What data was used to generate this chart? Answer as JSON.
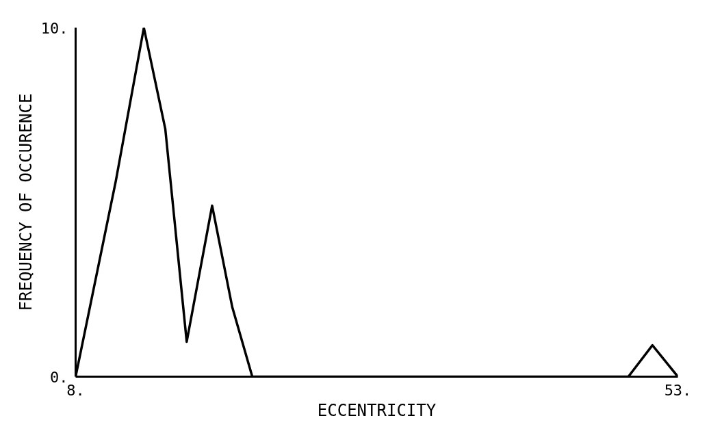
{
  "chart_data": {
    "type": "line",
    "xlabel": "ECCENTRICITY",
    "ylabel": "FREQUENCY OF OCCURENCE",
    "series": [
      {
        "color": "#000000",
        "x": [
          8,
          11.0,
          13.1,
          14.7,
          16.3,
          18.2,
          19.7,
          21.2,
          49.3,
          51.1,
          53
        ],
        "values": [
          0,
          5.6,
          10,
          7.1,
          1.0,
          4.9,
          2.0,
          0,
          0,
          0.9,
          0
        ]
      }
    ],
    "xlim": [
      8,
      53
    ],
    "ylim": [
      0,
      10
    ],
    "xticks": [
      {
        "value": 8,
        "label": "8."
      },
      {
        "value": 53,
        "label": "53."
      }
    ],
    "yticks": [
      {
        "value": 0,
        "label": "0."
      },
      {
        "value": 10,
        "label": "10."
      }
    ],
    "marker": "none",
    "line_style": "solid"
  }
}
